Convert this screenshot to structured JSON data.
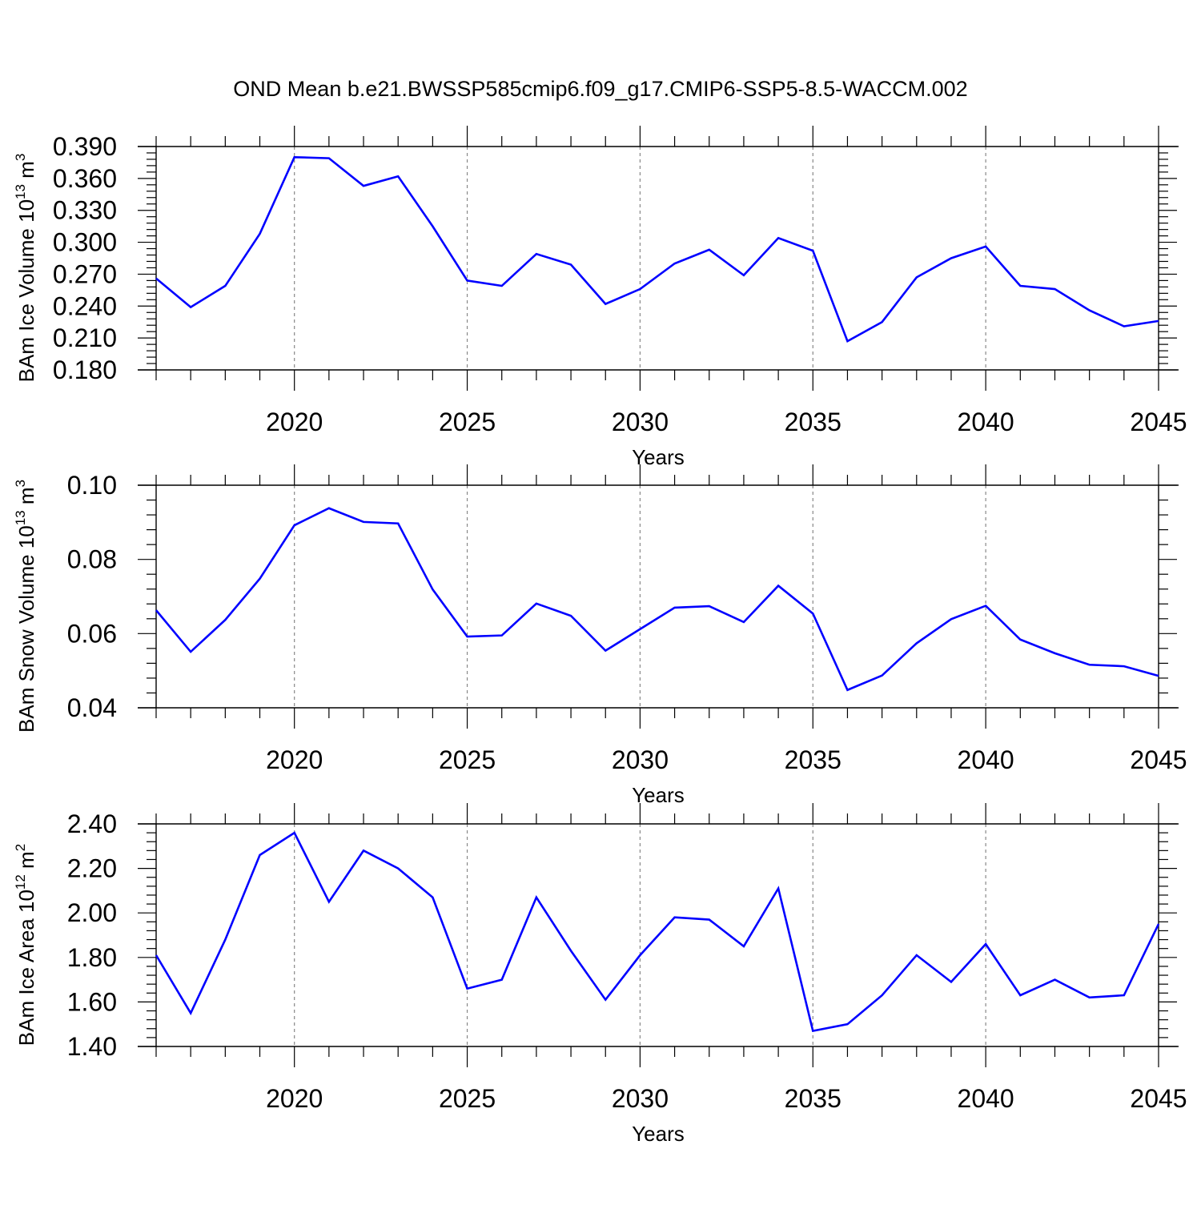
{
  "title": "OND Mean b.e21.BWSSP585cmip6.f09_g17.CMIP6-SSP5-8.5-WACCM.002",
  "chart_data": [
    {
      "type": "line",
      "ylabel": {
        "base": "BAm Ice Volume 10",
        "exp": "13",
        "unit": " m",
        "unit_exp": "3"
      },
      "xlabel": "Years",
      "x": [
        2016,
        2017,
        2018,
        2019,
        2020,
        2021,
        2022,
        2023,
        2024,
        2025,
        2026,
        2027,
        2028,
        2029,
        2030,
        2031,
        2032,
        2033,
        2034,
        2035,
        2036,
        2037,
        2038,
        2039,
        2040,
        2041,
        2042,
        2043,
        2044,
        2045
      ],
      "series": [
        {
          "values": [
            0.266,
            0.239,
            0.259,
            0.308,
            0.38,
            0.379,
            0.353,
            0.362,
            0.315,
            0.264,
            0.259,
            0.289,
            0.279,
            0.242,
            0.256,
            0.28,
            0.293,
            0.269,
            0.304,
            0.292,
            0.207,
            0.225,
            0.267,
            0.285,
            0.296,
            0.259,
            0.256,
            0.236,
            0.221,
            0.226
          ],
          "color": "#0000ff"
        }
      ],
      "xlim": [
        2016,
        2045
      ],
      "ylim": [
        0.18,
        0.39
      ],
      "yticks": [
        "0.180",
        "0.210",
        "0.240",
        "0.270",
        "0.300",
        "0.330",
        "0.360",
        "0.390"
      ],
      "xticks": [
        "2020",
        "2025",
        "2030",
        "2035",
        "2040",
        "2045"
      ]
    },
    {
      "type": "line",
      "ylabel": {
        "base": "BAm Snow Volume 10",
        "exp": "13",
        "unit": " m",
        "unit_exp": "3"
      },
      "xlabel": "Years",
      "x": [
        2016,
        2017,
        2018,
        2019,
        2020,
        2021,
        2022,
        2023,
        2024,
        2025,
        2026,
        2027,
        2028,
        2029,
        2030,
        2031,
        2032,
        2033,
        2034,
        2035,
        2036,
        2037,
        2038,
        2039,
        2040,
        2041,
        2042,
        2043,
        2044,
        2045
      ],
      "series": [
        {
          "values": [
            0.0663,
            0.0551,
            0.0637,
            0.0748,
            0.0892,
            0.0938,
            0.0901,
            0.0897,
            0.0719,
            0.0592,
            0.0595,
            0.0681,
            0.0648,
            0.0554,
            0.0612,
            0.067,
            0.0674,
            0.0631,
            0.0729,
            0.0654,
            0.0448,
            0.0487,
            0.0574,
            0.0639,
            0.0675,
            0.0584,
            0.0547,
            0.0516,
            0.0512,
            0.0486
          ],
          "color": "#0000ff"
        }
      ],
      "xlim": [
        2016,
        2045
      ],
      "ylim": [
        0.04,
        0.1
      ],
      "yticks": [
        "0.04",
        "0.06",
        "0.08",
        "0.10"
      ],
      "xticks": [
        "2020",
        "2025",
        "2030",
        "2035",
        "2040",
        "2045"
      ]
    },
    {
      "type": "line",
      "ylabel": {
        "base": "BAm Ice Area 10",
        "exp": "12",
        "unit": " m",
        "unit_exp": "2"
      },
      "xlabel": "Years",
      "x": [
        2016,
        2017,
        2018,
        2019,
        2020,
        2021,
        2022,
        2023,
        2024,
        2025,
        2026,
        2027,
        2028,
        2029,
        2030,
        2031,
        2032,
        2033,
        2034,
        2035,
        2036,
        2037,
        2038,
        2039,
        2040,
        2041,
        2042,
        2043,
        2044,
        2045
      ],
      "series": [
        {
          "values": [
            1.81,
            1.55,
            1.88,
            2.26,
            2.36,
            2.05,
            2.28,
            2.2,
            2.07,
            1.66,
            1.7,
            2.07,
            1.83,
            1.61,
            1.81,
            1.98,
            1.97,
            1.85,
            2.11,
            1.47,
            1.5,
            1.63,
            1.81,
            1.69,
            1.86,
            1.63,
            1.7,
            1.62,
            1.63,
            1.95
          ],
          "color": "#0000ff"
        }
      ],
      "xlim": [
        2016,
        2045
      ],
      "ylim": [
        1.4,
        2.4
      ],
      "yticks": [
        "1.40",
        "1.60",
        "1.80",
        "2.00",
        "2.20",
        "2.40"
      ],
      "xticks": [
        "2020",
        "2025",
        "2030",
        "2035",
        "2040",
        "2045"
      ]
    }
  ]
}
